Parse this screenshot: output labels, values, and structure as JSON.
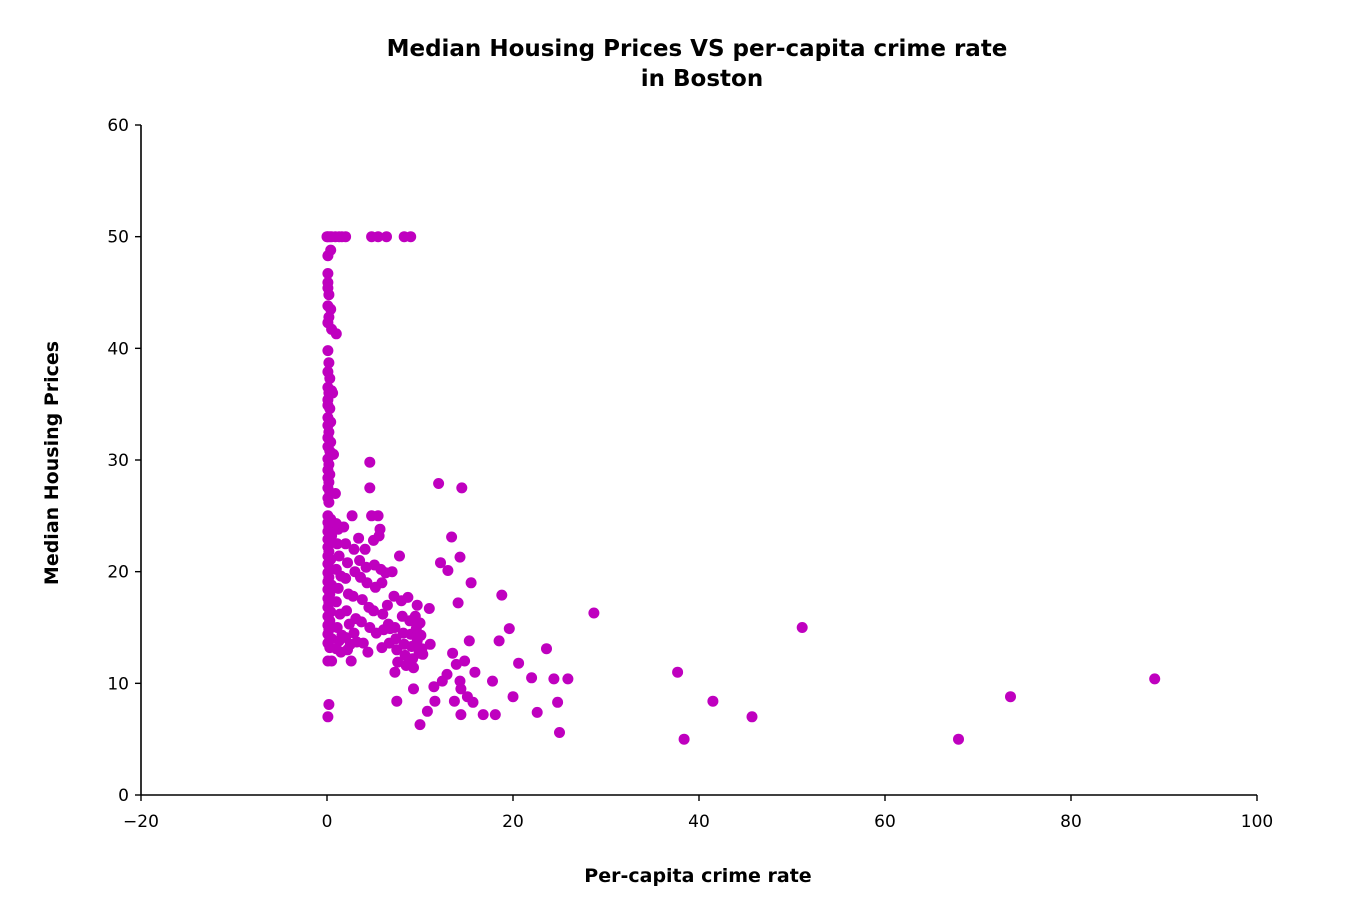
{
  "chart_data": {
    "type": "scatter",
    "title_lines": [
      "Median Housing Prices VS per-capita crime rate",
      "in Boston"
    ],
    "xlabel": "Per-capita crime rate",
    "ylabel": "Median Housing Prices",
    "xlim": [
      -20,
      100
    ],
    "ylim": [
      0,
      60
    ],
    "xticks": [
      -20,
      0,
      20,
      40,
      60,
      80,
      100
    ],
    "xtick_labels": [
      "−20",
      "0",
      "20",
      "40",
      "60",
      "80",
      "100"
    ],
    "yticks": [
      0,
      10,
      20,
      30,
      40,
      50,
      60
    ],
    "ytick_labels": [
      "0",
      "10",
      "20",
      "30",
      "40",
      "50",
      "60"
    ],
    "grid": false,
    "marker_color": "#bf00bf",
    "points": [
      [
        0.0,
        50.0
      ],
      [
        0.1,
        50.0
      ],
      [
        0.3,
        50.0
      ],
      [
        0.5,
        50.0
      ],
      [
        0.9,
        50.0
      ],
      [
        1.3,
        50.0
      ],
      [
        1.6,
        50.0
      ],
      [
        2.0,
        50.0
      ],
      [
        4.8,
        50.0
      ],
      [
        5.5,
        50.0
      ],
      [
        6.4,
        50.0
      ],
      [
        8.3,
        50.0
      ],
      [
        9.0,
        50.0
      ],
      [
        0.1,
        48.3
      ],
      [
        0.4,
        48.8
      ],
      [
        0.1,
        46.7
      ],
      [
        0.1,
        45.9
      ],
      [
        0.1,
        45.4
      ],
      [
        0.2,
        44.8
      ],
      [
        0.1,
        43.8
      ],
      [
        0.4,
        43.5
      ],
      [
        0.2,
        42.8
      ],
      [
        0.1,
        42.3
      ],
      [
        0.5,
        41.7
      ],
      [
        1.0,
        41.3
      ],
      [
        0.1,
        39.8
      ],
      [
        0.2,
        38.7
      ],
      [
        0.1,
        37.9
      ],
      [
        0.3,
        37.3
      ],
      [
        0.1,
        36.5
      ],
      [
        0.5,
        36.2
      ],
      [
        0.2,
        36.0
      ],
      [
        0.1,
        35.4
      ],
      [
        0.1,
        34.9
      ],
      [
        0.3,
        34.6
      ],
      [
        0.1,
        33.8
      ],
      [
        0.4,
        33.4
      ],
      [
        0.1,
        33.1
      ],
      [
        0.2,
        32.5
      ],
      [
        0.1,
        32.0
      ],
      [
        0.4,
        31.6
      ],
      [
        0.1,
        31.2
      ],
      [
        0.3,
        30.8
      ],
      [
        0.5,
        30.5
      ],
      [
        0.1,
        30.1
      ],
      [
        0.2,
        29.6
      ],
      [
        0.1,
        29.1
      ],
      [
        0.3,
        28.7
      ],
      [
        0.1,
        28.4
      ],
      [
        0.2,
        28.0
      ],
      [
        0.1,
        27.5
      ],
      [
        0.3,
        27.1
      ],
      [
        0.1,
        26.6
      ],
      [
        0.2,
        26.2
      ],
      [
        0.1,
        25.0
      ],
      [
        0.4,
        24.7
      ],
      [
        0.1,
        24.4
      ],
      [
        0.2,
        24.0
      ],
      [
        0.1,
        23.6
      ],
      [
        0.5,
        23.2
      ],
      [
        0.1,
        22.9
      ],
      [
        0.3,
        22.6
      ],
      [
        0.1,
        22.2
      ],
      [
        0.2,
        21.8
      ],
      [
        0.1,
        21.4
      ],
      [
        0.4,
        21.1
      ],
      [
        0.1,
        20.7
      ],
      [
        0.3,
        20.3
      ],
      [
        0.1,
        19.9
      ],
      [
        0.2,
        19.5
      ],
      [
        0.1,
        19.1
      ],
      [
        0.5,
        18.8
      ],
      [
        0.1,
        18.4
      ],
      [
        0.3,
        18.0
      ],
      [
        0.1,
        17.6
      ],
      [
        0.2,
        17.2
      ],
      [
        0.1,
        16.8
      ],
      [
        0.4,
        16.4
      ],
      [
        0.1,
        16.0
      ],
      [
        0.3,
        15.6
      ],
      [
        0.1,
        15.2
      ],
      [
        0.2,
        14.8
      ],
      [
        0.1,
        14.4
      ],
      [
        0.5,
        14.0
      ],
      [
        0.1,
        13.6
      ],
      [
        0.3,
        13.2
      ],
      [
        0.1,
        12.0
      ],
      [
        0.5,
        12.0
      ],
      [
        0.2,
        8.1
      ],
      [
        0.1,
        7.0
      ],
      [
        0.6,
        36.0
      ],
      [
        0.7,
        30.5
      ],
      [
        0.9,
        27.0
      ],
      [
        1.0,
        24.3
      ],
      [
        1.2,
        23.8
      ],
      [
        1.1,
        22.5
      ],
      [
        1.3,
        21.4
      ],
      [
        1.0,
        20.2
      ],
      [
        1.5,
        19.6
      ],
      [
        1.2,
        18.5
      ],
      [
        1.0,
        17.3
      ],
      [
        1.4,
        16.2
      ],
      [
        1.1,
        15.0
      ],
      [
        1.6,
        14.3
      ],
      [
        1.3,
        13.8
      ],
      [
        1.0,
        13.1
      ],
      [
        1.5,
        12.8
      ],
      [
        1.8,
        24.0
      ],
      [
        2.0,
        22.5
      ],
      [
        2.2,
        20.8
      ],
      [
        2.0,
        19.4
      ],
      [
        2.3,
        18.0
      ],
      [
        2.1,
        16.5
      ],
      [
        2.4,
        15.3
      ],
      [
        2.0,
        14.1
      ],
      [
        2.5,
        13.5
      ],
      [
        2.2,
        13.0
      ],
      [
        2.6,
        12.0
      ],
      [
        2.7,
        25.0
      ],
      [
        2.9,
        22.0
      ],
      [
        3.0,
        20.0
      ],
      [
        2.8,
        17.8
      ],
      [
        3.1,
        15.8
      ],
      [
        2.9,
        14.5
      ],
      [
        3.2,
        13.7
      ],
      [
        3.4,
        23.0
      ],
      [
        3.5,
        21.0
      ],
      [
        3.6,
        19.5
      ],
      [
        3.8,
        17.5
      ],
      [
        3.7,
        15.5
      ],
      [
        3.9,
        13.6
      ],
      [
        4.1,
        22.0
      ],
      [
        4.2,
        20.4
      ],
      [
        4.3,
        19.0
      ],
      [
        4.5,
        16.8
      ],
      [
        4.6,
        15.0
      ],
      [
        4.4,
        12.8
      ],
      [
        4.6,
        29.8
      ],
      [
        4.6,
        27.5
      ],
      [
        4.8,
        25.0
      ],
      [
        5.0,
        22.8
      ],
      [
        5.1,
        20.6
      ],
      [
        5.2,
        18.6
      ],
      [
        5.0,
        16.5
      ],
      [
        5.3,
        14.5
      ],
      [
        5.5,
        25.0
      ],
      [
        5.7,
        23.8
      ],
      [
        5.6,
        23.2
      ],
      [
        5.8,
        20.2
      ],
      [
        5.9,
        19.0
      ],
      [
        6.0,
        16.2
      ],
      [
        6.1,
        14.8
      ],
      [
        5.9,
        13.2
      ],
      [
        6.3,
        19.9
      ],
      [
        6.5,
        17.0
      ],
      [
        6.6,
        15.3
      ],
      [
        6.8,
        14.9
      ],
      [
        6.7,
        13.6
      ],
      [
        7.0,
        20.0
      ],
      [
        7.2,
        17.8
      ],
      [
        7.3,
        15.0
      ],
      [
        7.4,
        14.0
      ],
      [
        7.5,
        13.0
      ],
      [
        7.6,
        11.9
      ],
      [
        7.3,
        11.0
      ],
      [
        7.8,
        21.4
      ],
      [
        8.0,
        17.4
      ],
      [
        8.1,
        16.0
      ],
      [
        8.2,
        14.5
      ],
      [
        8.3,
        13.5
      ],
      [
        8.4,
        12.5
      ],
      [
        8.5,
        11.6
      ],
      [
        8.7,
        17.7
      ],
      [
        8.9,
        15.6
      ],
      [
        9.0,
        14.4
      ],
      [
        9.1,
        13.3
      ],
      [
        9.2,
        12.2
      ],
      [
        9.3,
        11.4
      ],
      [
        9.5,
        16.0
      ],
      [
        9.6,
        14.9
      ],
      [
        9.7,
        13.8
      ],
      [
        9.9,
        12.7
      ],
      [
        10.0,
        15.4
      ],
      [
        10.1,
        14.3
      ],
      [
        10.2,
        13.1
      ],
      [
        10.3,
        12.6
      ],
      [
        9.7,
        17.0
      ],
      [
        7.5,
        8.4
      ],
      [
        9.3,
        9.5
      ],
      [
        10.0,
        6.3
      ],
      [
        10.8,
        7.5
      ],
      [
        11.0,
        16.7
      ],
      [
        11.1,
        13.5
      ],
      [
        11.5,
        9.7
      ],
      [
        11.6,
        8.4
      ],
      [
        12.0,
        27.9
      ],
      [
        12.2,
        20.8
      ],
      [
        12.4,
        10.2
      ],
      [
        12.9,
        10.8
      ],
      [
        13.0,
        20.1
      ],
      [
        13.4,
        23.1
      ],
      [
        13.5,
        12.7
      ],
      [
        13.7,
        8.4
      ],
      [
        13.9,
        11.7
      ],
      [
        14.1,
        17.2
      ],
      [
        14.3,
        21.3
      ],
      [
        14.3,
        10.2
      ],
      [
        14.4,
        9.5
      ],
      [
        14.5,
        27.5
      ],
      [
        14.4,
        7.2
      ],
      [
        14.8,
        12.0
      ],
      [
        15.1,
        8.8
      ],
      [
        15.3,
        13.8
      ],
      [
        15.5,
        19.0
      ],
      [
        15.7,
        8.3
      ],
      [
        15.9,
        11.0
      ],
      [
        16.8,
        7.2
      ],
      [
        17.8,
        10.2
      ],
      [
        18.1,
        7.2
      ],
      [
        18.5,
        13.8
      ],
      [
        18.8,
        17.9
      ],
      [
        19.6,
        14.9
      ],
      [
        20.0,
        8.8
      ],
      [
        20.6,
        11.8
      ],
      [
        22.0,
        10.5
      ],
      [
        22.6,
        7.4
      ],
      [
        23.6,
        13.1
      ],
      [
        24.4,
        10.4
      ],
      [
        24.8,
        8.3
      ],
      [
        25.0,
        5.6
      ],
      [
        25.9,
        10.4
      ],
      [
        28.7,
        16.3
      ],
      [
        37.7,
        11.0
      ],
      [
        38.4,
        5.0
      ],
      [
        41.5,
        8.4
      ],
      [
        45.7,
        7.0
      ],
      [
        51.1,
        15.0
      ],
      [
        67.9,
        5.0
      ],
      [
        73.5,
        8.8
      ],
      [
        89.0,
        10.4
      ]
    ]
  }
}
